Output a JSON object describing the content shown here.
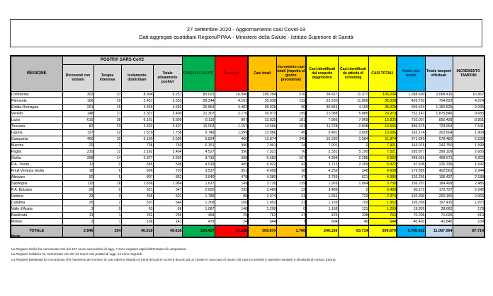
{
  "header": {
    "line1": "27 settembre 2020 - Aggiornamento casi Covid-19",
    "line2": "Dati aggregati quotidiani Regioni/PPAA - Ministero della Salute - Istituto Superiore di Sanità"
  },
  "colors": {
    "green": "#00b050",
    "red": "#ff0000",
    "orange": "#ffc000",
    "yellow": "#ffff00",
    "blue": "#00b0f0",
    "light_blue": "#c5d9f1",
    "gray_dark": "#bfbfbf",
    "gray_light": "#d9d9d9"
  },
  "table": {
    "headers": {
      "regione": "REGIONE",
      "positivi_group": "POSITIVI SARS-CoV2",
      "ricoverati": "Ricoverati con sintomi",
      "terapia": "Terapia intensiva",
      "isolamento": "Isolamento domiciliare",
      "totale_positivi": "Totale attualmente positivi",
      "dimessi": "DIMESSI GUARITI",
      "deceduti": "Deceduti",
      "casi_totali": "Casi totali",
      "incremento_casi": "Incremento casi totali (rispetto al giorno precedente)",
      "casi_sospetto": "Casi identificati dal sospetto diagnostico",
      "casi_screening": "Casi identificati da attività di screening",
      "casi_totali_caps": "CASI TOTALI",
      "casi_testati": "Totale casi testati",
      "tamponi": "Totale tamponi effettuati",
      "incremento_tamponi": "INCREMENTO TAMPONI"
    },
    "rows": [
      [
        "Lombardia",
        "302",
        "31",
        "8.904",
        "9.237",
        "80.021",
        "16.946",
        "106.204",
        "216",
        "94.827",
        "11.377",
        "106.204",
        "1.288.690",
        "2.068.416",
        "16.567"
      ],
      [
        "Piemonte",
        "166",
        "10",
        "2.457",
        "2.633",
        "28.244",
        "4.161",
        "35.038",
        "132",
        "23.230",
        "11.808",
        "35.038",
        "426.733",
        "704.623",
        "4.274"
      ],
      [
        "Emilia-Romagna",
        "201",
        "15",
        "4.466",
        "4.682",
        "25.864",
        "4.482",
        "35.028",
        "96",
        "30.863",
        "4.165",
        "35.028",
        "655.624",
        "1.150.825",
        "9.295"
      ],
      [
        "Veneto",
        "148",
        "21",
        "3.321",
        "3.490",
        "21.307",
        "2.176",
        "26.973",
        "159",
        "21.088",
        "5.885",
        "26.973",
        "731.147",
        "1.875.846",
        "9.683"
      ],
      [
        "Lazio",
        "610",
        "38",
        "6.161",
        "6.809",
        "8.119",
        "907",
        "15.835",
        "181",
        "7.866",
        "7.969",
        "15.835",
        "710.057",
        "850.428",
        "8.851"
      ],
      [
        "Toscana",
        "82",
        "23",
        "3.302",
        "3.407",
        "10.002",
        "1.157",
        "14.566",
        "101",
        "11.728",
        "2.838",
        "14.566",
        "486.576",
        "723.653",
        "7.541"
      ],
      [
        "Liguria",
        "137",
        "22",
        "1.579",
        "1.738",
        "9.749",
        "1.599",
        "13.086",
        "45",
        "9.481",
        "3.605",
        "13.086",
        "162.174",
        "302.604",
        "1.908"
      ],
      [
        "Campania",
        "400",
        "30",
        "5.160",
        "5.590",
        "5.824",
        "460",
        "11.874",
        "245",
        "10.290",
        "1.584",
        "11.874",
        "371.640",
        "578.480",
        "5.539"
      ],
      [
        "Marche",
        "20",
        "2",
        "738",
        "760",
        "6.151",
        "990",
        "7.901",
        "24",
        "7.901",
        "0",
        "7.901",
        "143.076",
        "242.750",
        "1.599"
      ],
      [
        "Puglia",
        "210",
        "12",
        "2.182",
        "2.404",
        "4.527",
        "590",
        "7.521",
        "76",
        "2.331",
        "5.190",
        "7.521",
        "283.877",
        "399.109",
        "2.683"
      ],
      [
        "Sicilia",
        "268",
        "14",
        "2.377",
        "2.659",
        "3.716",
        "308",
        "6.683",
        "107",
        "4.398",
        "2.285",
        "6.683",
        "345.016",
        "468.671",
        "4.202"
      ],
      [
        "P.A. Trento",
        "12",
        "0",
        "586",
        "598",
        "4.919",
        "405",
        "5.922",
        "42",
        "3.713",
        "2.209",
        "5.922",
        "97.509",
        "226.336",
        "1.542"
      ],
      [
        "Friuli Venezia Giulia",
        "18",
        "6",
        "696",
        "720",
        "3.537",
        "351",
        "4.608",
        "28",
        "4.259",
        "349",
        "4.608",
        "179.595",
        "402.562",
        "2.344"
      ],
      [
        "Abruzzo",
        "50",
        "5",
        "807",
        "862",
        "3.040",
        "478",
        "4.380",
        "47",
        "3.759",
        "621",
        "4.380",
        "126.265",
        "196.437",
        "2.188"
      ],
      [
        "Sardegna",
        "110",
        "18",
        "1.836",
        "1.964",
        "1.617",
        "149",
        "3.730",
        "139",
        "1.926",
        "1.804",
        "3.730",
        "156.237",
        "184.499",
        "2.485"
      ],
      [
        "P.A. Bolzano",
        "26",
        "0",
        "521",
        "547",
        "2.650",
        "292",
        "3.489",
        "22",
        "3.489",
        "0",
        "3.489",
        "90.172",
        "172.727",
        "2.242"
      ],
      [
        "Umbria",
        "33",
        "3",
        "465",
        "501",
        "1.788",
        "85",
        "2.374",
        "21",
        "1.651",
        "723",
        "2.374",
        "120.300",
        "200.150",
        "2.065"
      ],
      [
        "Calabria",
        "35",
        "2",
        "507",
        "544",
        "1.308",
        "100",
        "1.952",
        "31",
        "1.159",
        "793",
        "1.952",
        "195.309",
        "197.415",
        "1.870"
      ],
      [
        "Valle d'Aosta",
        "3",
        "0",
        "63",
        "66",
        "1.087",
        "146",
        "1.299",
        "0",
        "1.168",
        "131",
        "1.299",
        "19.826",
        "28.662",
        "178"
      ],
      [
        "Basilicata",
        "13",
        "1",
        "252",
        "266",
        "468",
        "29",
        "763",
        "47",
        "425",
        "338",
        "763",
        "70.206",
        "71.026",
        "519"
      ],
      [
        "Molise",
        "2",
        "1",
        "138",
        "141",
        "479",
        "24",
        "644",
        "7",
        "604",
        "40",
        "644",
        "40.403",
        "41.845",
        "139"
      ]
    ],
    "total_row": [
      "TOTALE",
      "2.846",
      "254",
      "46.518",
      "49.618",
      "224.417",
      "35.835",
      "309.870",
      "1.766",
      "246.156",
      "63.714",
      "309.870",
      "6.700.432",
      "11.087.064",
      "87.714"
    ]
  },
  "notes": {
    "title": "Note:",
    "lines": [
      "La Regione Sicilia ha comunicato che dei 107 nuovi casi positivi di oggi, 7 sono migranti ospiti dell'Hotspot di Lampedusa.",
      "La Regione Calabria ha comunicato che dei 31 nuovi casi positivi di oggi, 24 sono migranti.",
      "La Regione Basilicata ha comunicato che l'aumento del numero di casi odierno rispetto al trend dei giorni scorsi è dovuto ad un cluster in una casa di riposo (28 casi tra assistiti e operatori sanitari) e all'attività di contact tracing."
    ]
  }
}
